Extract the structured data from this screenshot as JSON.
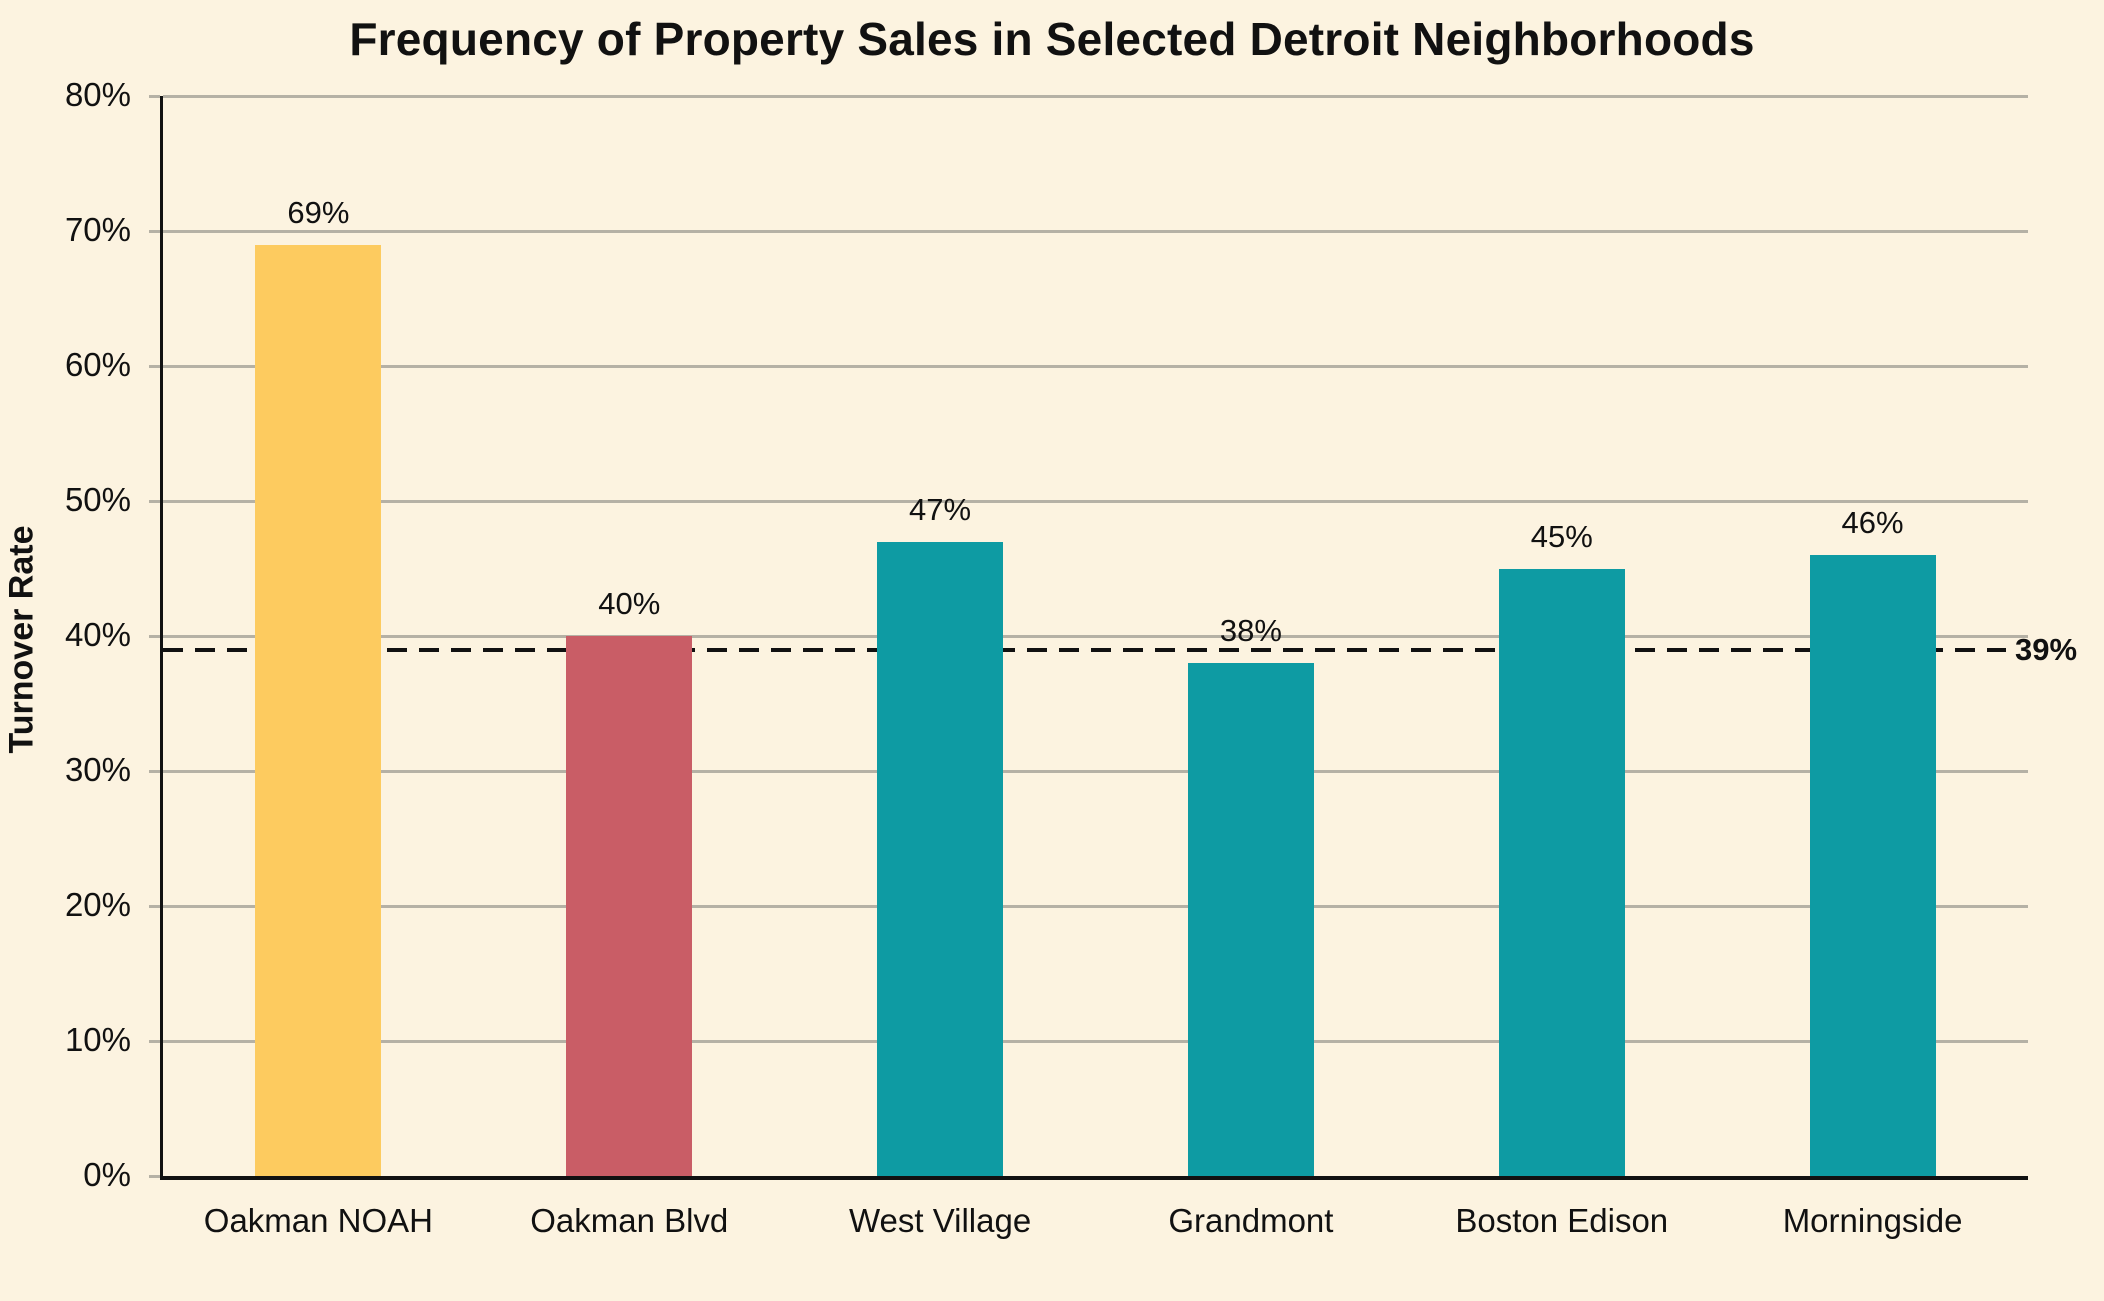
{
  "colors": {
    "background": "#FCF3E0",
    "grid": "#B5B1A5",
    "axis": "#111111",
    "text": "#111111",
    "reference_line": "#111111",
    "bar_highlight_yellow": "#FDCB5F",
    "bar_highlight_red": "#C95D66",
    "bar_default_teal": "#0E9BA3"
  },
  "chart_data": {
    "type": "bar",
    "title": "Frequency of Property Sales in Selected Detroit Neighborhoods",
    "xlabel": "",
    "ylabel": "Turnover Rate",
    "categories": [
      "Oakman NOAH",
      "Oakman Blvd",
      "West Village",
      "Grandmont",
      "Boston Edison",
      "Morningside"
    ],
    "values": [
      69,
      40,
      47,
      38,
      45,
      46
    ],
    "data_labels": [
      "69%",
      "40%",
      "47%",
      "38%",
      "45%",
      "46%"
    ],
    "bar_colors": [
      "#FDCB5F",
      "#C95D66",
      "#0E9BA3",
      "#0E9BA3",
      "#0E9BA3",
      "#0E9BA3"
    ],
    "ylim": [
      0,
      80
    ],
    "yticks": [
      0,
      10,
      20,
      30,
      40,
      50,
      60,
      70,
      80
    ],
    "ytick_labels": [
      "0%",
      "10%",
      "20%",
      "30%",
      "40%",
      "50%",
      "60%",
      "70%",
      "80%"
    ],
    "grid": "horizontal",
    "legend": "none",
    "reference_line": {
      "value": 39,
      "label": "39%",
      "style": "dashed"
    }
  }
}
